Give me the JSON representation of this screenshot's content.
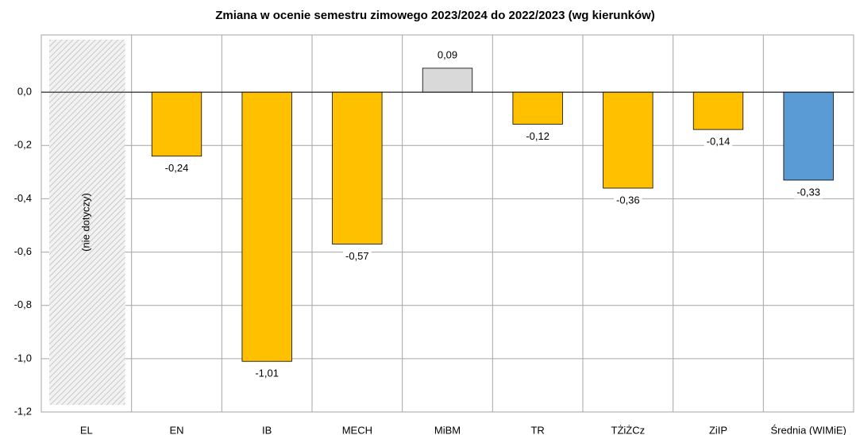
{
  "chart_data": {
    "type": "bar",
    "title": "Zmiana w ocenie semestru zimowego 2023/2024 do 2022/2023  (wg kierunków)",
    "categories": [
      "EL",
      "EN",
      "IB",
      "MECH",
      "MiBM",
      "TR",
      "TŻiŻCz",
      "ZiIP",
      "Średnia (WIMiE)"
    ],
    "values": [
      null,
      -0.24,
      -1.01,
      -0.57,
      0.09,
      -0.12,
      -0.36,
      -0.14,
      -0.33
    ],
    "value_labels": [
      null,
      "-0,24",
      "-1,01",
      "-0,57",
      "0,09",
      "-0,12",
      "-0,36",
      "-0,14",
      "-0,33"
    ],
    "colors": [
      null,
      "#ffc000",
      "#ffc000",
      "#ffc000",
      "#d9d9d9",
      "#ffc000",
      "#ffc000",
      "#ffc000",
      "#5b9bd5"
    ],
    "not_applicable_label": "(nie dotyczy)",
    "ylim": [
      -1.2,
      0.2
    ],
    "yticks": [
      {
        "value": -1.2,
        "label": "-1,2"
      },
      {
        "value": -1.0,
        "label": "-1,0"
      },
      {
        "value": -0.8,
        "label": "-0,8"
      },
      {
        "value": -0.6,
        "label": "-0,6"
      },
      {
        "value": -0.4,
        "label": "-0,4"
      },
      {
        "value": -0.2,
        "label": "-0,2"
      },
      {
        "value": 0,
        "label": "0,0"
      }
    ],
    "grid": true
  }
}
